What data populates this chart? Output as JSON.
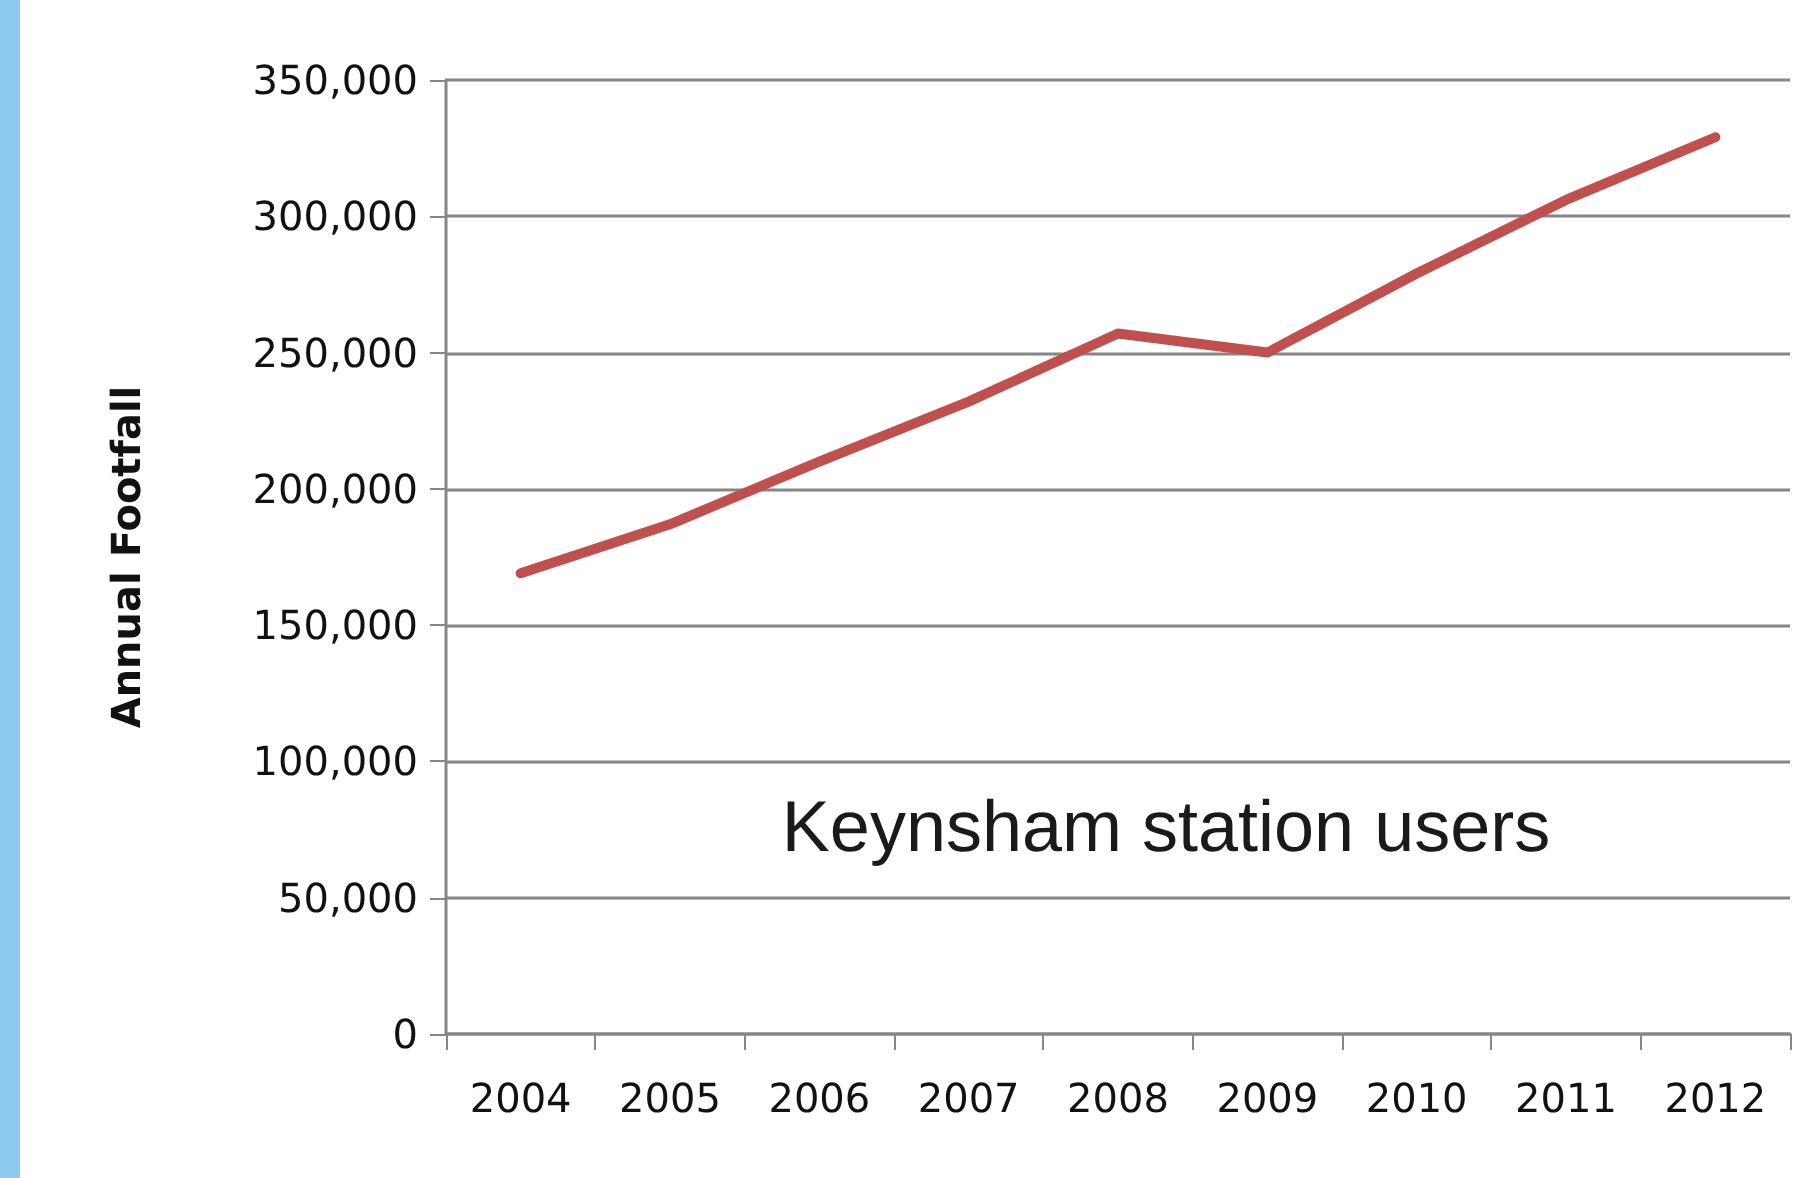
{
  "chart_data": {
    "type": "line",
    "title": "Keynsham station users",
    "ylabel": "Annual Footfall",
    "categories": [
      "2004",
      "2005",
      "2006",
      "2007",
      "2008",
      "2009",
      "2010",
      "2011",
      "2012"
    ],
    "series": [
      {
        "color": "#c0504d",
        "values": [
          169000,
          187000,
          210000,
          232000,
          257000,
          250000,
          279000,
          306000,
          329000
        ]
      }
    ],
    "ylim": [
      0,
      350000
    ],
    "yticks": [
      0,
      {
        "value": 50000,
        "label": "50,000"
      },
      {
        "value": 100000,
        "label": "100,000"
      },
      {
        "value": 150000,
        "label": "150,000"
      },
      {
        "value": 200000,
        "label": "200,000"
      },
      {
        "value": 250000,
        "label": "250,000"
      },
      {
        "value": 300000,
        "label": "300,000"
      },
      {
        "value": 350000,
        "label": "350,000"
      }
    ],
    "grid": "y",
    "marker": "none",
    "line_style": "solid"
  }
}
